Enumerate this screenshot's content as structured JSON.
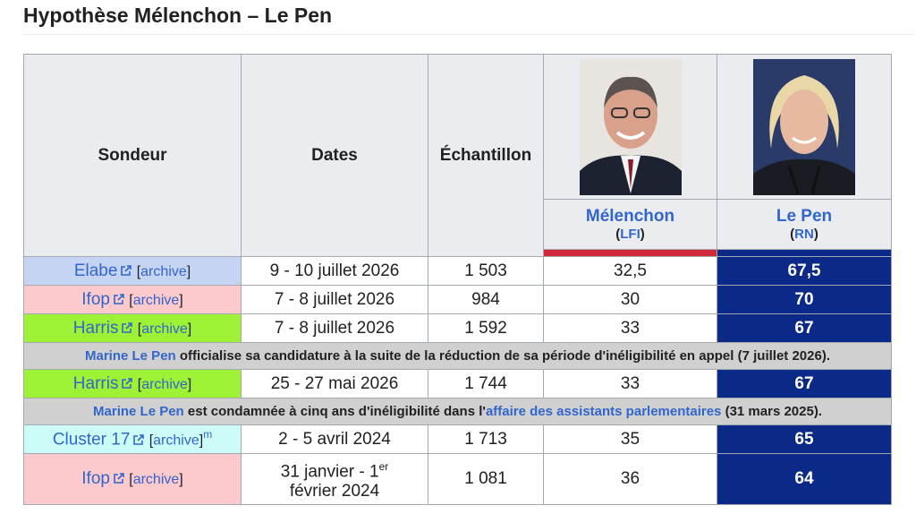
{
  "title": "Hypothèse Mélenchon – Le Pen",
  "table": {
    "headers": [
      "Sondeur",
      "Dates",
      "Échantillon"
    ],
    "candidates": [
      {
        "name": "Mélenchon",
        "party": [
          "(",
          "LFI",
          ")"
        ],
        "color": "#d3283c"
      },
      {
        "name": "Le Pen",
        "party": [
          "(",
          "RN",
          ")"
        ],
        "color": "#0b2a88"
      }
    ],
    "body": [
      {
        "pollster": "Elabe",
        "color": "#c6d4f4",
        "archive": [
          "[",
          "archive",
          "]"
        ],
        "dates": "9 - 10 juillet 2026",
        "sample": "1 503",
        "melenchon": "32,5",
        "lepen": "67,5"
      },
      {
        "pollster": "Ifop",
        "color": "#fcc9cc",
        "archive": [
          "[",
          "archive",
          "]"
        ],
        "dates": "7 - 8 juillet 2026",
        "sample": "984",
        "melenchon": "30",
        "lepen": "70"
      },
      {
        "pollster": "Harris",
        "color": "#9ef235",
        "archive": [
          "[",
          "archive",
          "]"
        ],
        "dates": "7 - 8 juillet 2026",
        "sample": "1 592",
        "melenchon": "33",
        "lepen": "67"
      },
      {
        "banner": [
          {
            "text": "Marine Le Pen",
            "link": true
          },
          {
            "text": " officialise sa candidature à la suite de la réduction de sa période d'inéligibilité en appel (7 juillet 2026).",
            "link": false
          }
        ]
      },
      {
        "pollster": "Harris",
        "color": "#9ef235",
        "archive": [
          "[",
          "archive",
          "]"
        ],
        "dates": "25 - 27 mai 2026",
        "sample": "1 744",
        "melenchon": "33",
        "lepen": "67"
      },
      {
        "banner": [
          {
            "text": "Marine Le Pen",
            "link": true
          },
          {
            "text": " est condamnée à cinq ans d'inéligibilité dans l'",
            "link": false
          },
          {
            "text": "affaire des assistants parlementaires",
            "link": true
          },
          {
            "text": " (31 mars 2025).",
            "link": false
          }
        ]
      },
      {
        "pollster": "Cluster 17",
        "color": "#ccfcf8",
        "archive": [
          "[",
          "archive",
          "]"
        ],
        "sup": "m",
        "dates": "2 - 5 avril 2024",
        "sample": "1 713",
        "melenchon": "35",
        "lepen": "65"
      },
      {
        "pollster": "Ifop",
        "color": "#fcc9cc",
        "archive": [
          "[",
          "archive",
          "]"
        ],
        "dates": [
          "31 janvier - 1",
          "er",
          "février 2024"
        ],
        "sample": "1 081",
        "melenchon": "36",
        "lepen": "64"
      }
    ]
  }
}
